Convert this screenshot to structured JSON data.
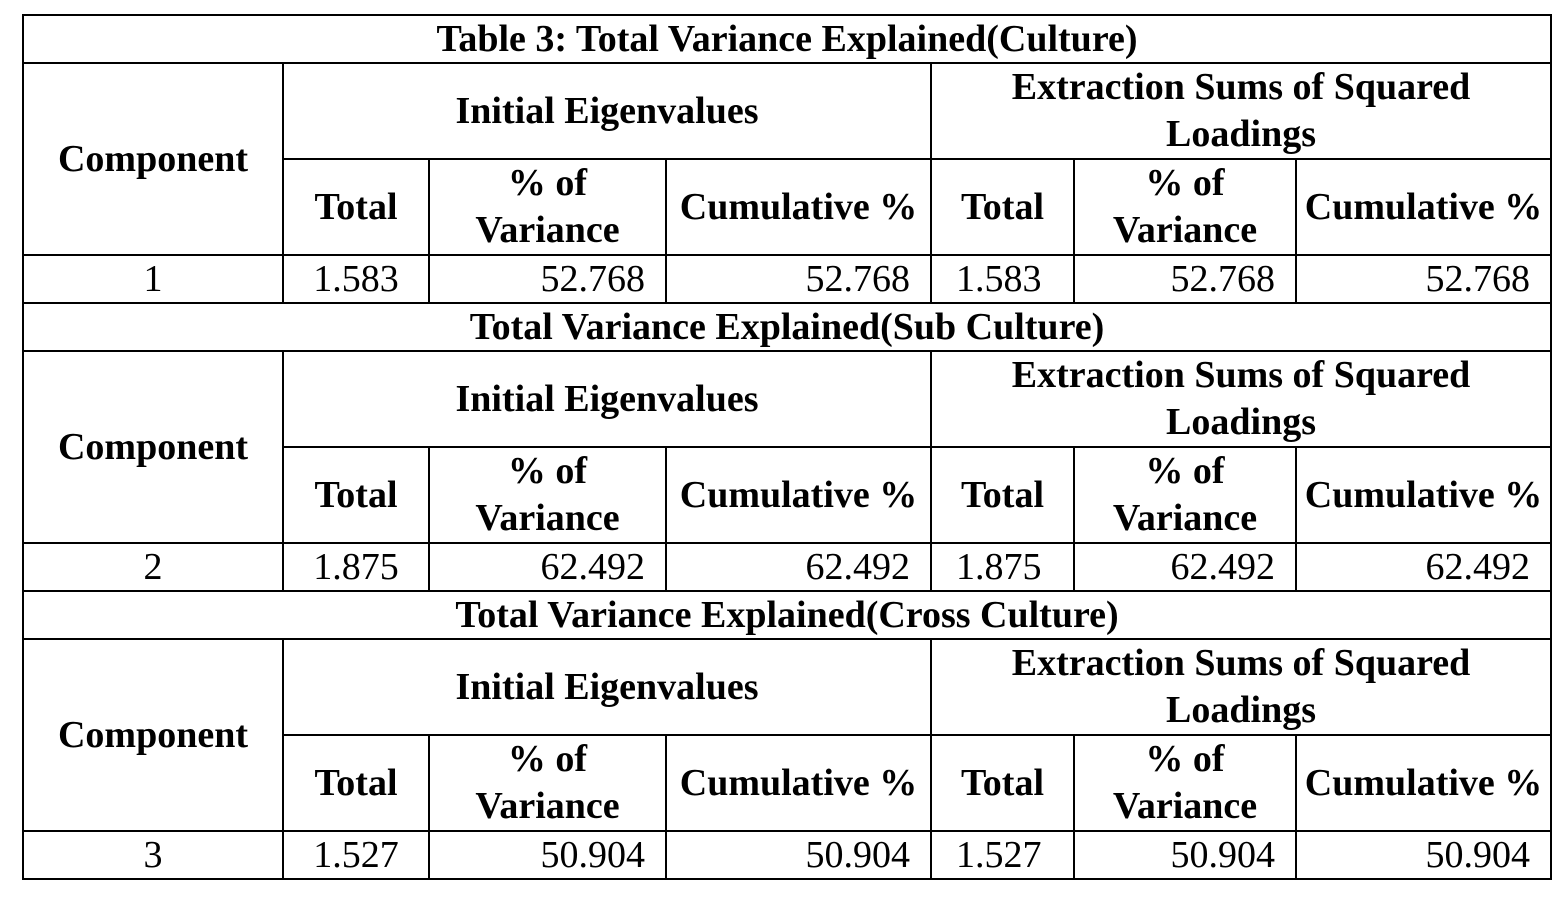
{
  "sections": [
    {
      "title": "Table 3: Total Variance Explained(Culture)",
      "component_header": "Component",
      "group1": "Initial Eigenvalues",
      "group2": "Extraction Sums of Squared Loadings",
      "cols": [
        "Total",
        "% of Variance",
        "Cumulative %",
        "Total",
        "% of Variance",
        "Cumulative %"
      ],
      "row": {
        "component": "1",
        "values": [
          "1.583",
          "52.768",
          "52.768",
          "1.583",
          "52.768",
          "52.768"
        ]
      }
    },
    {
      "title": "Total Variance Explained(Sub Culture)",
      "component_header": "Component",
      "group1": "Initial Eigenvalues",
      "group2": "Extraction Sums of Squared Loadings",
      "cols": [
        "Total",
        "% of Variance",
        "Cumulative %",
        "Total",
        "% of Variance",
        "Cumulative %"
      ],
      "row": {
        "component": "2",
        "values": [
          "1.875",
          "62.492",
          "62.492",
          "1.875",
          "62.492",
          "62.492"
        ]
      }
    },
    {
      "title": "Total Variance Explained(Cross Culture)",
      "component_header": "Component",
      "group1": "Initial Eigenvalues",
      "group2": "Extraction Sums of Squared Loadings",
      "cols": [
        "Total",
        "% of Variance",
        "Cumulative %",
        "Total",
        "% of Variance",
        "Cumulative %"
      ],
      "row": {
        "component": "3",
        "values": [
          "1.527",
          "50.904",
          "50.904",
          "1.527",
          "50.904",
          "50.904"
        ]
      }
    }
  ]
}
